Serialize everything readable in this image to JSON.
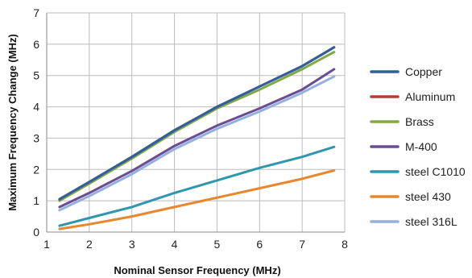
{
  "chart_data": {
    "type": "line",
    "title": "",
    "xlabel": "Nominal Sensor Frequency (MHz)",
    "ylabel": "Maximum Frequency Change (MHz)",
    "xlim": [
      1,
      8
    ],
    "ylim": [
      0,
      7
    ],
    "xticks": [
      "1",
      "2",
      "3",
      "4",
      "5",
      "6",
      "7",
      "8"
    ],
    "yticks": [
      "0",
      "1",
      "2",
      "3",
      "4",
      "5",
      "6",
      "7"
    ],
    "grid": true,
    "legend_position": "right",
    "series": [
      {
        "name": "Copper",
        "color": "#2e5f9e",
        "x": [
          1.3,
          2,
          3,
          4,
          5,
          6,
          7,
          7.75
        ],
        "y": [
          1.05,
          1.6,
          2.4,
          3.25,
          4.0,
          4.65,
          5.3,
          5.9
        ]
      },
      {
        "name": "Aluminum",
        "color": "#b33d3a",
        "x": [
          1.3,
          2,
          3,
          4,
          5,
          6,
          7,
          7.75
        ],
        "y": [
          1.05,
          1.6,
          2.4,
          3.25,
          4.0,
          4.65,
          5.3,
          5.9
        ]
      },
      {
        "name": "Brass",
        "color": "#82a843",
        "x": [
          1.3,
          2,
          3,
          4,
          5,
          6,
          7,
          7.75
        ],
        "y": [
          1.0,
          1.55,
          2.35,
          3.2,
          3.95,
          4.55,
          5.2,
          5.75
        ]
      },
      {
        "name": "M-400",
        "color": "#6a4c94",
        "x": [
          1.3,
          2,
          3,
          4,
          5,
          6,
          7,
          7.75
        ],
        "y": [
          0.8,
          1.25,
          1.95,
          2.75,
          3.4,
          3.95,
          4.55,
          5.2
        ]
      },
      {
        "name": "steel C1010",
        "color": "#2f97ad",
        "x": [
          1.3,
          2,
          3,
          4,
          5,
          6,
          7,
          7.75
        ],
        "y": [
          0.2,
          0.45,
          0.8,
          1.25,
          1.65,
          2.05,
          2.4,
          2.72
        ]
      },
      {
        "name": "steel 430",
        "color": "#e8872d",
        "x": [
          1.3,
          2,
          3,
          4,
          5,
          6,
          7,
          7.75
        ],
        "y": [
          0.1,
          0.25,
          0.5,
          0.8,
          1.1,
          1.4,
          1.7,
          1.97
        ]
      },
      {
        "name": "steel 316L",
        "color": "#94b0dc",
        "x": [
          1.3,
          2,
          3,
          4,
          5,
          6,
          7,
          7.75
        ],
        "y": [
          0.7,
          1.15,
          1.85,
          2.65,
          3.3,
          3.85,
          4.45,
          4.97
        ]
      }
    ]
  }
}
